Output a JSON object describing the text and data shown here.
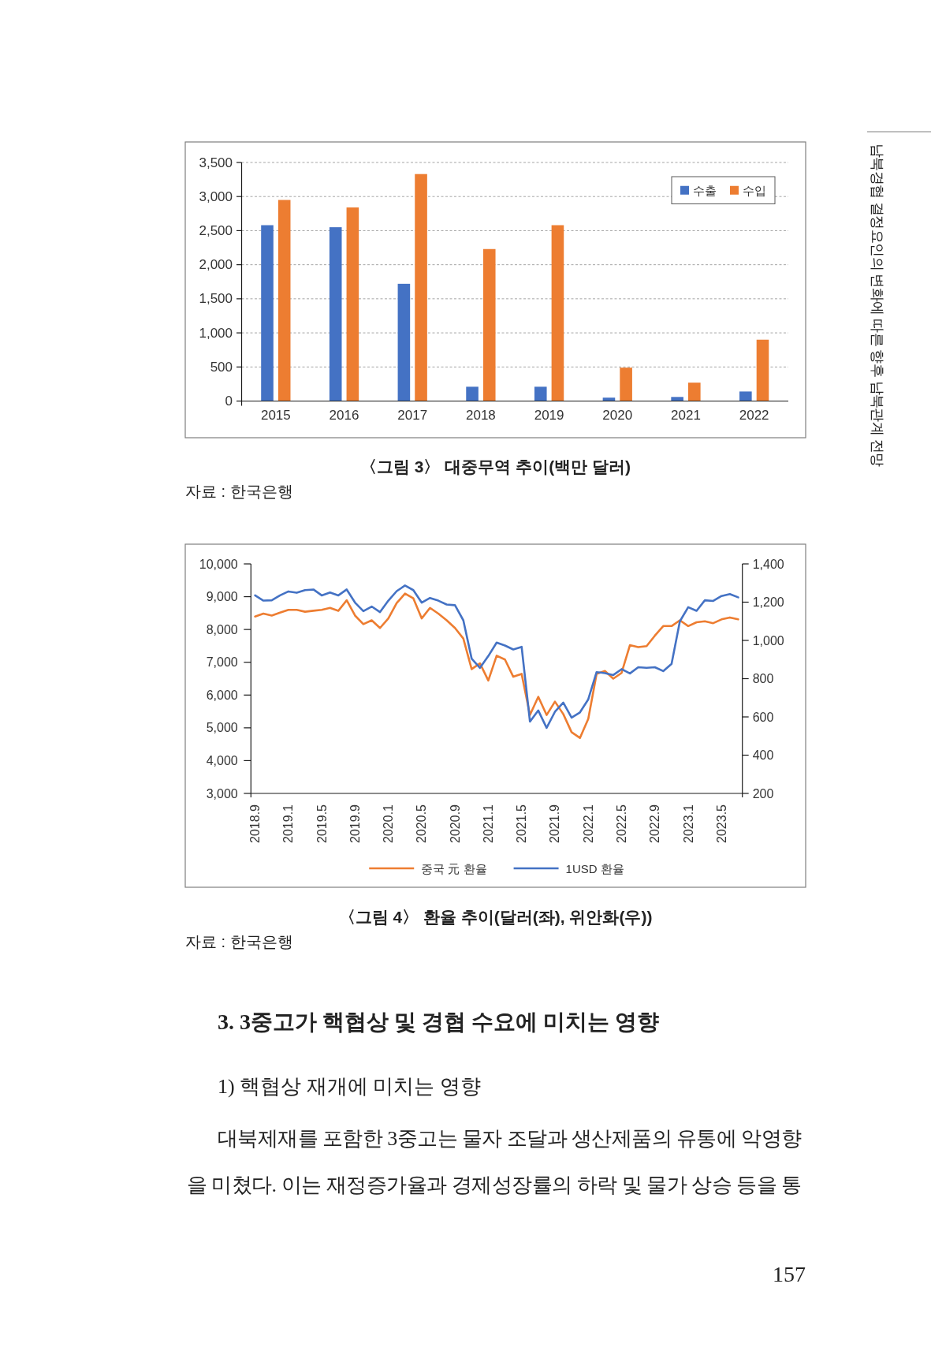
{
  "chart_data": [
    {
      "type": "bar",
      "title": "〈그림 3〉 대중무역 추이(백만 달러)",
      "categories": [
        "2015",
        "2016",
        "2017",
        "2018",
        "2019",
        "2020",
        "2021",
        "2022"
      ],
      "series": [
        {
          "name": "수출",
          "color": "#4472c4",
          "values": [
            2580,
            2550,
            1720,
            210,
            210,
            50,
            60,
            140
          ]
        },
        {
          "name": "수입",
          "color": "#ed7d31",
          "values": [
            2950,
            2840,
            3330,
            2230,
            2580,
            490,
            270,
            900
          ]
        }
      ],
      "ylim": [
        0,
        3500
      ],
      "yticks": [
        0,
        500,
        {
          "value": 1000,
          "label": "1,000"
        },
        {
          "value": 1500,
          "label": "1,500"
        },
        {
          "value": 2000,
          "label": "2,000"
        },
        {
          "value": 2500,
          "label": "2,500"
        },
        {
          "value": 3000,
          "label": "3,000"
        },
        {
          "value": 3500,
          "label": "3,500"
        }
      ],
      "grid": "y",
      "legend": "top right",
      "annotations": [
        "자료 : 한국은행",
        "남북경협 결정요인의 변화에 따른 향후 남북관계 전망"
      ]
    },
    {
      "type": "line",
      "title": "〈그림 4〉 환율 추이(달러(좌), 위안화(우))",
      "categories": [
        "2018.9",
        null,
        null,
        null,
        "2019.1",
        null,
        null,
        null,
        "2019.5",
        null,
        null,
        null,
        "2019.9",
        null,
        null,
        null,
        "2020.1",
        null,
        null,
        null,
        "2020.5",
        null,
        null,
        null,
        "2020.9",
        null,
        null,
        null,
        "2021.1",
        null,
        null,
        null,
        "2021.5",
        null,
        null,
        null,
        "2021.9",
        null,
        null,
        null,
        "2022.1",
        null,
        null,
        null,
        "2022.5",
        null,
        null,
        null,
        "2022.9",
        null,
        null,
        null,
        "2023.1",
        null,
        null,
        null,
        "2023.5",
        null,
        null
      ],
      "series": [
        {
          "name": "중국 元 환율",
          "color": "#ed7d31",
          "axis": "y2",
          "values": [
            1125,
            1140,
            1130,
            1145,
            1160,
            1160,
            1150,
            1155,
            1160,
            1170,
            1155,
            1210,
            1130,
            1085,
            1105,
            1065,
            1115,
            1195,
            1245,
            1220,
            1115,
            1170,
            1140,
            1105,
            1065,
            1010,
            850,
            880,
            790,
            920,
            900,
            810,
            825,
            610,
            705,
            610,
            680,
            615,
            520,
            490,
            590,
            825,
            840,
            800,
            830,
            975,
            965,
            970,
            1025,
            1075,
            1075,
            1105,
            1075,
            1095,
            1100,
            1090,
            1110,
            1120,
            1110
          ]
        },
        {
          "name": "1USD 환율",
          "color": "#4472c4",
          "values": [
            9040,
            8880,
            8890,
            9040,
            9160,
            9120,
            9200,
            9220,
            9040,
            9130,
            9040,
            9220,
            8820,
            8560,
            8700,
            8530,
            8880,
            9170,
            9340,
            9200,
            8820,
            8960,
            8880,
            8760,
            8740,
            8280,
            7110,
            6830,
            7190,
            7600,
            7510,
            7390,
            7470,
            5190,
            5530,
            5000,
            5490,
            5770,
            5310,
            5470,
            5870,
            6700,
            6670,
            6610,
            6790,
            6660,
            6850,
            6830,
            6850,
            6730,
            6950,
            8250,
            8680,
            8570,
            8890,
            8870,
            9020,
            9080,
            8980
          ]
        }
      ],
      "ylim": [
        3000,
        10000
      ],
      "yticks": [
        {
          "value": 3000,
          "label": "3,000"
        },
        {
          "value": 4000,
          "label": "4,000"
        },
        {
          "value": 5000,
          "label": "5,000"
        },
        {
          "value": 6000,
          "label": "6,000"
        },
        {
          "value": 7000,
          "label": "7,000"
        },
        {
          "value": 8000,
          "label": "8,000"
        },
        {
          "value": 9000,
          "label": "9,000"
        },
        {
          "value": 10000,
          "label": "10,000"
        }
      ],
      "y2lim": [
        200,
        1400
      ],
      "y2ticks": [
        200,
        400,
        600,
        800,
        {
          "value": 1000,
          "label": "1,000"
        },
        {
          "value": 1200,
          "label": "1,200"
        },
        {
          "value": 1400,
          "label": "1,400"
        }
      ],
      "legend": "bottom",
      "annotations": [
        "자료 : 한국은행",
        "3. 3중고가 핵협상 및 경협 수요에 미치는 영향",
        "1) 핵협상 재개에 미치는 영향",
        "대북제재를 포함한 3중고는 물자 조달과 생산제품의 유통에 악영향",
        "을 미쳤다. 이는 재정증가율과 경제성장률의 하락 및 물가 상승 등을 통",
        "157"
      ]
    }
  ]
}
